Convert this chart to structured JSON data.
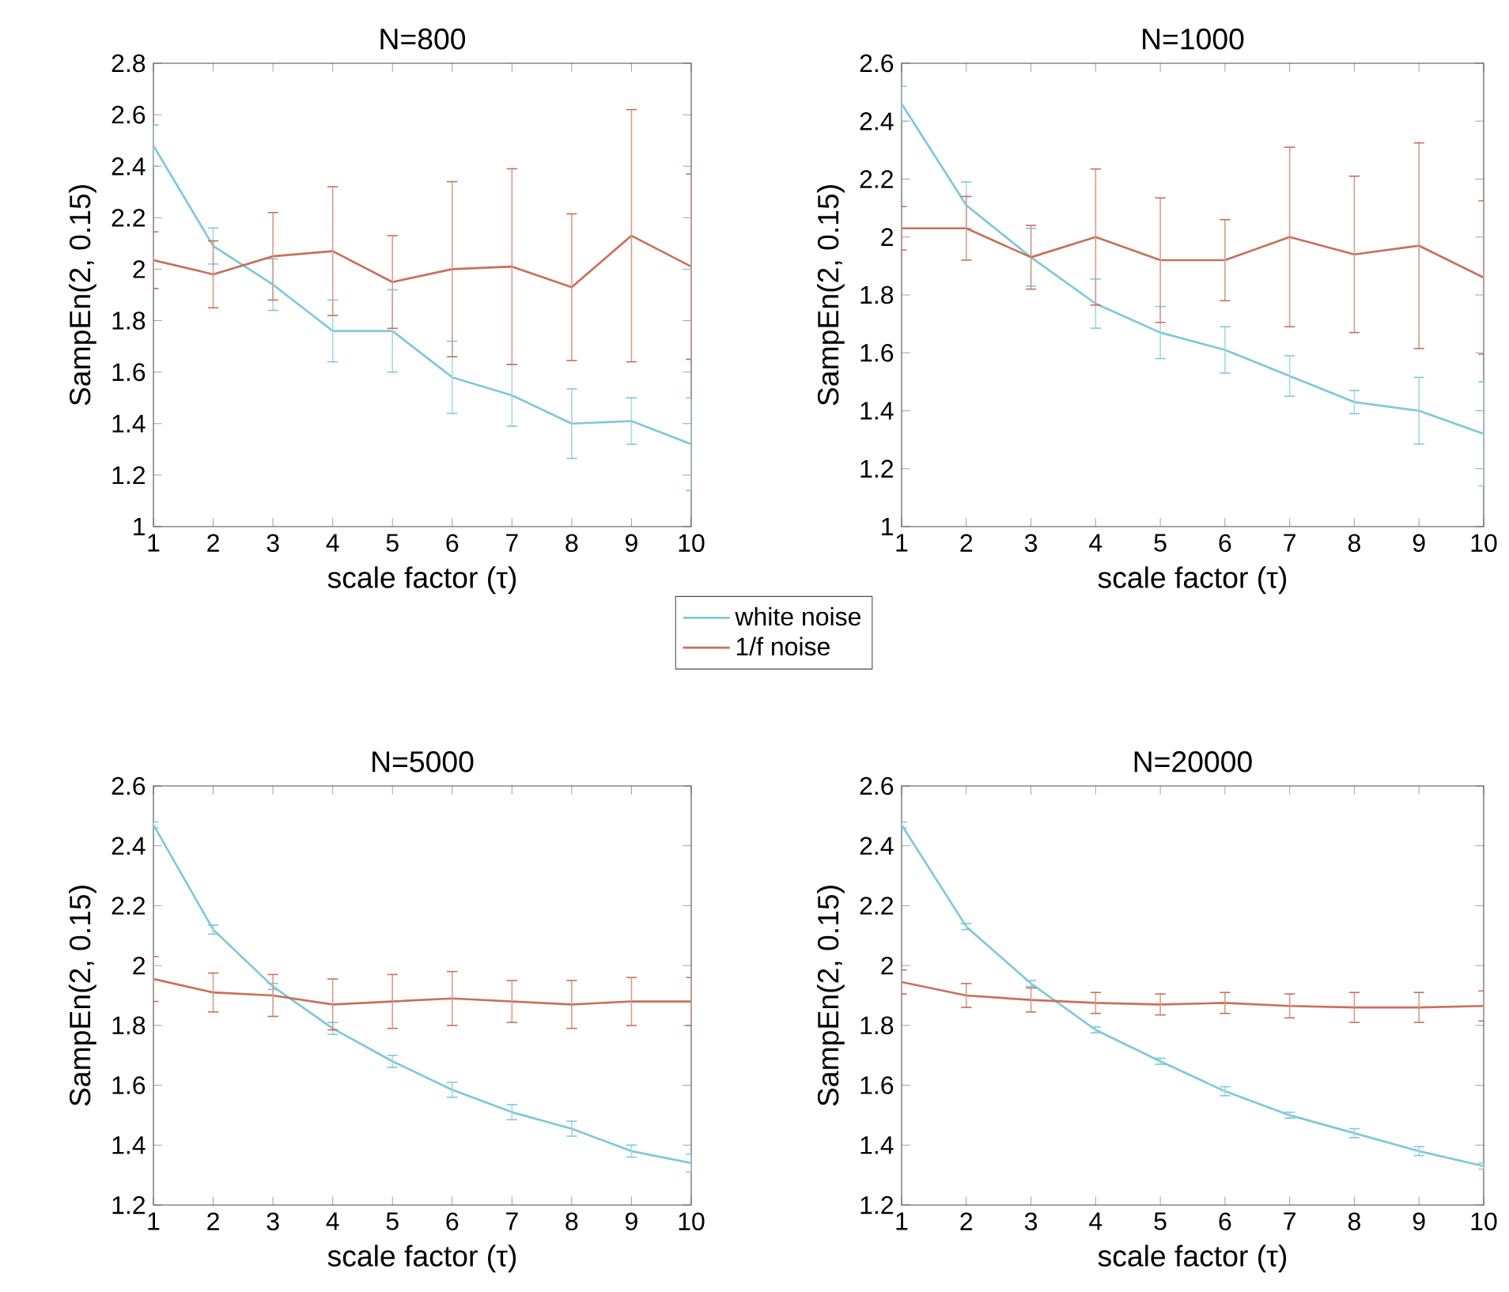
{
  "chart_data": [
    {
      "type": "line",
      "title": "N=800",
      "xlabel": "scale factor (τ)",
      "ylabel": "SampEn(2, 0.15)",
      "x": [
        1,
        2,
        3,
        4,
        5,
        6,
        7,
        8,
        9,
        10
      ],
      "xlim": [
        1,
        10
      ],
      "xticks": [
        1,
        2,
        3,
        4,
        5,
        6,
        7,
        8,
        9,
        10
      ],
      "ylim": [
        1,
        2.8
      ],
      "yticks": [
        1,
        1.2,
        1.4,
        1.6,
        1.8,
        2,
        2.2,
        2.4,
        2.6,
        2.8
      ],
      "grid": false,
      "series": [
        {
          "color": "#7ec8dc",
          "values": [
            2.48,
            2.09,
            1.94,
            1.76,
            1.76,
            1.58,
            1.51,
            1.4,
            1.41,
            1.32
          ],
          "errors": [
            0.08,
            0.07,
            0.1,
            0.12,
            0.16,
            0.14,
            0.12,
            0.135,
            0.09,
            0.18
          ]
        },
        {
          "color": "#c8705a",
          "values": [
            2.035,
            1.98,
            2.05,
            2.07,
            1.95,
            2.0,
            2.01,
            1.93,
            2.13,
            2.01
          ],
          "errors": [
            0.11,
            0.13,
            0.17,
            0.25,
            0.18,
            0.34,
            0.38,
            0.285,
            0.49,
            0.36
          ]
        }
      ]
    },
    {
      "type": "line",
      "title": "N=1000",
      "xlabel": "scale factor (τ)",
      "ylabel": "SampEn(2, 0.15)",
      "x": [
        1,
        2,
        3,
        4,
        5,
        6,
        7,
        8,
        9,
        10
      ],
      "xlim": [
        1,
        10
      ],
      "xticks": [
        1,
        2,
        3,
        4,
        5,
        6,
        7,
        8,
        9,
        10
      ],
      "ylim": [
        1,
        2.6
      ],
      "yticks": [
        1,
        1.2,
        1.4,
        1.6,
        1.8,
        2,
        2.2,
        2.4,
        2.6
      ],
      "grid": false,
      "legend": "bottom left",
      "series": [
        {
          "name": "white noise",
          "color": "#7ec8dc",
          "values": [
            2.46,
            2.11,
            1.93,
            1.77,
            1.67,
            1.61,
            1.52,
            1.43,
            1.4,
            1.32
          ],
          "errors": [
            0.06,
            0.08,
            0.1,
            0.085,
            0.09,
            0.08,
            0.07,
            0.04,
            0.115,
            0.18
          ]
        },
        {
          "name": "1/f noise",
          "color": "#c8705a",
          "values": [
            2.03,
            2.03,
            1.93,
            2.0,
            1.92,
            1.92,
            2.0,
            1.94,
            1.97,
            1.86
          ],
          "errors": [
            0.075,
            0.11,
            0.11,
            0.235,
            0.215,
            0.14,
            0.31,
            0.27,
            0.355,
            0.265
          ]
        }
      ]
    },
    {
      "type": "line",
      "title": "N=5000",
      "xlabel": "scale factor (τ)",
      "ylabel": "SampEn(2, 0.15)",
      "x": [
        1,
        2,
        3,
        4,
        5,
        6,
        7,
        8,
        9,
        10
      ],
      "xlim": [
        1,
        10
      ],
      "xticks": [
        1,
        2,
        3,
        4,
        5,
        6,
        7,
        8,
        9,
        10
      ],
      "ylim": [
        1.2,
        2.6
      ],
      "yticks": [
        1.2,
        1.4,
        1.6,
        1.8,
        2,
        2.2,
        2.4,
        2.6
      ],
      "grid": false,
      "series": [
        {
          "color": "#7ec8dc",
          "values": [
            2.47,
            2.12,
            1.93,
            1.79,
            1.68,
            1.585,
            1.51,
            1.455,
            1.38,
            1.34
          ],
          "errors": [
            0.01,
            0.015,
            0.01,
            0.02,
            0.02,
            0.025,
            0.025,
            0.025,
            0.02,
            0.03
          ]
        },
        {
          "color": "#c8705a",
          "values": [
            1.955,
            1.91,
            1.9,
            1.87,
            1.88,
            1.89,
            1.88,
            1.87,
            1.88,
            1.88
          ],
          "errors": [
            0.075,
            0.065,
            0.07,
            0.085,
            0.09,
            0.09,
            0.07,
            0.08,
            0.08,
            0.08
          ]
        }
      ]
    },
    {
      "type": "line",
      "title": "N=20000",
      "xlabel": "scale factor (τ)",
      "ylabel": "SampEn(2, 0.15)",
      "x": [
        1,
        2,
        3,
        4,
        5,
        6,
        7,
        8,
        9,
        10
      ],
      "xlim": [
        1,
        10
      ],
      "xticks": [
        1,
        2,
        3,
        4,
        5,
        6,
        7,
        8,
        9,
        10
      ],
      "ylim": [
        1.2,
        2.6
      ],
      "yticks": [
        1.2,
        1.4,
        1.6,
        1.8,
        2,
        2.2,
        2.4,
        2.6
      ],
      "grid": false,
      "series": [
        {
          "color": "#7ec8dc",
          "values": [
            2.47,
            2.13,
            1.94,
            1.785,
            1.68,
            1.58,
            1.5,
            1.44,
            1.38,
            1.33
          ],
          "errors": [
            0.01,
            0.01,
            0.01,
            0.01,
            0.01,
            0.015,
            0.01,
            0.015,
            0.015,
            0.01
          ]
        },
        {
          "color": "#c8705a",
          "values": [
            1.945,
            1.9,
            1.885,
            1.875,
            1.87,
            1.875,
            1.865,
            1.86,
            1.86,
            1.865
          ],
          "errors": [
            0.04,
            0.04,
            0.04,
            0.035,
            0.035,
            0.035,
            0.04,
            0.05,
            0.05,
            0.05
          ]
        }
      ]
    }
  ]
}
